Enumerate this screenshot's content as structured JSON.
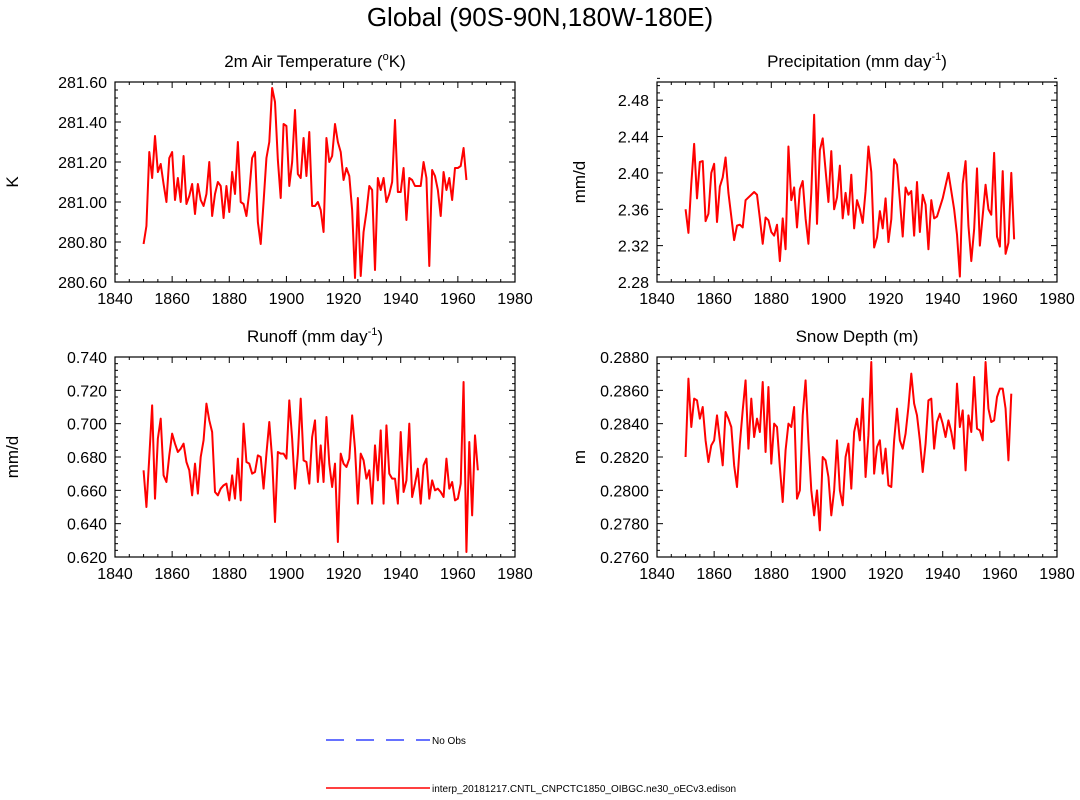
{
  "page_title": "Global (90S-90N,180W-180E)",
  "colors": {
    "series_line": "#ff0000",
    "obs_line": "#3344ff",
    "axis": "#000000"
  },
  "legend": {
    "obs_label": "No Obs",
    "model_label": "interp_20181217.CNTL_CNPCTC1850_OIBGC.ne30_oECv3.edison"
  },
  "chart_data": [
    {
      "type": "line",
      "title": "2m Air Temperature (",
      "title_sup": "o",
      "title_end": "K)",
      "xlabel": "",
      "ylabel": "K",
      "xlim": [
        1840,
        1980
      ],
      "ylim": [
        280.6,
        281.6
      ],
      "x_ticks": [
        "1840",
        "1860",
        "1880",
        "1900",
        "1920",
        "1940",
        "1960",
        "1980"
      ],
      "y_ticks": [
        "280.60",
        "280.80",
        "281.00",
        "281.20",
        "281.40",
        "281.60"
      ],
      "series": [
        {
          "name": "interp_20181217.CNTL_CNPCTC1850_OIBGC.ne30_oECv3.edison",
          "x_start": 1850,
          "values": [
            280.79,
            280.88,
            281.25,
            281.12,
            281.33,
            281.15,
            281.19,
            281.09,
            281.0,
            281.22,
            281.25,
            281.01,
            281.12,
            281.0,
            281.23,
            280.99,
            281.03,
            281.09,
            280.94,
            281.09,
            281.01,
            280.98,
            281.04,
            281.2,
            280.93,
            281.04,
            281.1,
            281.08,
            280.92,
            281.08,
            280.95,
            281.15,
            281.04,
            281.3,
            281.0,
            280.99,
            280.93,
            281.05,
            281.22,
            281.25,
            280.9,
            280.79,
            281.0,
            281.22,
            281.3,
            281.57,
            281.5,
            281.21,
            281.02,
            281.39,
            281.38,
            281.08,
            281.2,
            281.46,
            281.14,
            281.12,
            281.32,
            281.13,
            281.35,
            280.98,
            280.98,
            281.0,
            280.96,
            280.85,
            281.32,
            281.2,
            281.23,
            281.39,
            281.3,
            281.25,
            281.11,
            281.17,
            281.13,
            280.96,
            280.62,
            281.02,
            280.63,
            280.85,
            280.95,
            281.08,
            281.06,
            280.66,
            281.12,
            281.06,
            281.12,
            281.0,
            281.04,
            281.1,
            281.41,
            281.05,
            281.05,
            281.17,
            280.91,
            281.12,
            281.11,
            281.08,
            281.08,
            281.08,
            281.2,
            281.12,
            280.68,
            281.16,
            281.13,
            281.06,
            280.93,
            281.15,
            281.06,
            281.12,
            281.01,
            281.17,
            281.17,
            281.18,
            281.27,
            281.11
          ]
        }
      ]
    },
    {
      "type": "line",
      "title": "Precipitation (mm day",
      "title_sup": "-1",
      "title_end": ")",
      "xlabel": "",
      "ylabel": "mm/d",
      "xlim": [
        1840,
        1980
      ],
      "ylim": [
        2.28,
        2.5
      ],
      "x_ticks": [
        "1840",
        "1860",
        "1880",
        "1900",
        "1920",
        "1940",
        "1960",
        "1980"
      ],
      "y_ticks": [
        "2.28",
        "2.32",
        "2.36",
        "2.40",
        "2.44",
        "2.48"
      ],
      "series": [
        {
          "name": "interp_20181217.CNTL_CNPCTC1850_OIBGC.ne30_oECv3.edison",
          "x_start": 1850,
          "values": [
            2.36,
            2.334,
            2.388,
            2.432,
            2.372,
            2.412,
            2.413,
            2.347,
            2.355,
            2.4,
            2.41,
            2.346,
            2.385,
            2.395,
            2.417,
            2.378,
            2.352,
            2.326,
            2.342,
            2.343,
            2.34,
            2.37,
            2.373,
            2.376,
            2.379,
            2.376,
            2.35,
            2.322,
            2.351,
            2.348,
            2.335,
            2.331,
            2.343,
            2.303,
            2.35,
            2.316,
            2.429,
            2.37,
            2.384,
            2.34,
            2.382,
            2.391,
            2.35,
            2.322,
            2.378,
            2.464,
            2.344,
            2.425,
            2.438,
            2.403,
            2.368,
            2.424,
            2.36,
            2.373,
            2.408,
            2.35,
            2.378,
            2.354,
            2.398,
            2.339,
            2.37,
            2.36,
            2.345,
            2.38,
            2.429,
            2.401,
            2.318,
            2.329,
            2.358,
            2.339,
            2.372,
            2.324,
            2.349,
            2.415,
            2.409,
            2.37,
            2.33,
            2.384,
            2.376,
            2.38,
            2.331,
            2.39,
            2.335,
            2.376,
            2.365,
            2.316,
            2.37,
            2.35,
            2.352,
            2.362,
            2.372,
            2.386,
            2.4,
            2.38,
            2.36,
            2.332,
            2.286,
            2.388,
            2.413,
            2.342,
            2.303,
            2.338,
            2.405,
            2.32,
            2.353,
            2.387,
            2.36,
            2.354,
            2.422,
            2.33,
            2.319,
            2.402,
            2.311,
            2.323,
            2.4,
            2.327
          ]
        }
      ]
    },
    {
      "type": "line",
      "title": "Runoff (mm day",
      "title_sup": "-1",
      "title_end": ")",
      "xlabel": "",
      "ylabel": "mm/d",
      "xlim": [
        1840,
        1980
      ],
      "ylim": [
        0.62,
        0.74
      ],
      "x_ticks": [
        "1840",
        "1860",
        "1880",
        "1900",
        "1920",
        "1940",
        "1960",
        "1980"
      ],
      "y_ticks": [
        "0.620",
        "0.640",
        "0.660",
        "0.680",
        "0.700",
        "0.720",
        "0.740"
      ],
      "series": [
        {
          "name": "interp_20181217.CNTL_CNPCTC1850_OIBGC.ne30_oECv3.edison",
          "x_start": 1850,
          "values": [
            0.672,
            0.65,
            0.68,
            0.711,
            0.655,
            0.691,
            0.703,
            0.669,
            0.665,
            0.681,
            0.694,
            0.688,
            0.683,
            0.685,
            0.688,
            0.677,
            0.672,
            0.657,
            0.676,
            0.658,
            0.68,
            0.69,
            0.712,
            0.702,
            0.695,
            0.659,
            0.657,
            0.661,
            0.663,
            0.664,
            0.654,
            0.669,
            0.655,
            0.679,
            0.654,
            0.7,
            0.677,
            0.676,
            0.67,
            0.671,
            0.681,
            0.68,
            0.661,
            0.682,
            0.701,
            0.679,
            0.641,
            0.683,
            0.682,
            0.682,
            0.679,
            0.714,
            0.691,
            0.661,
            0.682,
            0.715,
            0.678,
            0.677,
            0.664,
            0.692,
            0.702,
            0.665,
            0.687,
            0.665,
            0.704,
            0.676,
            0.662,
            0.676,
            0.629,
            0.682,
            0.676,
            0.674,
            0.679,
            0.705,
            0.685,
            0.652,
            0.682,
            0.678,
            0.667,
            0.672,
            0.652,
            0.687,
            0.666,
            0.696,
            0.652,
            0.699,
            0.67,
            0.667,
            0.667,
            0.652,
            0.695,
            0.659,
            0.666,
            0.7,
            0.656,
            0.664,
            0.673,
            0.652,
            0.675,
            0.679,
            0.655,
            0.666,
            0.66,
            0.661,
            0.659,
            0.656,
            0.679,
            0.661,
            0.665,
            0.654,
            0.655,
            0.664,
            0.725,
            0.623,
            0.689,
            0.645,
            0.693,
            0.672
          ]
        }
      ]
    },
    {
      "type": "line",
      "title": "Snow Depth (m)",
      "title_sup": "",
      "title_end": "",
      "xlabel": "",
      "ylabel": "m",
      "xlim": [
        1840,
        1980
      ],
      "ylim": [
        0.276,
        0.288
      ],
      "x_ticks": [
        "1840",
        "1860",
        "1880",
        "1900",
        "1920",
        "1940",
        "1960",
        "1980"
      ],
      "y_ticks": [
        "0.2760",
        "0.2780",
        "0.2800",
        "0.2820",
        "0.2840",
        "0.2860",
        "0.2880"
      ],
      "series": [
        {
          "name": "interp_20181217.CNTL_CNPCTC1850_OIBGC.ne30_oECv3.edison",
          "x_start": 1850,
          "values": [
            0.282,
            0.2867,
            0.2838,
            0.2855,
            0.2854,
            0.2843,
            0.285,
            0.283,
            0.2817,
            0.2827,
            0.283,
            0.2845,
            0.283,
            0.2815,
            0.2847,
            0.2843,
            0.2838,
            0.2815,
            0.2802,
            0.2828,
            0.2848,
            0.2866,
            0.2825,
            0.2855,
            0.2832,
            0.2843,
            0.2835,
            0.2865,
            0.2823,
            0.2862,
            0.2816,
            0.284,
            0.2838,
            0.2814,
            0.2793,
            0.2824,
            0.284,
            0.2838,
            0.285,
            0.2795,
            0.28,
            0.2845,
            0.2866,
            0.283,
            0.28,
            0.2785,
            0.28,
            0.2776,
            0.282,
            0.2818,
            0.2808,
            0.2785,
            0.28,
            0.283,
            0.28,
            0.2791,
            0.282,
            0.2828,
            0.2801,
            0.2835,
            0.2843,
            0.283,
            0.2855,
            0.2808,
            0.2833,
            0.2877,
            0.281,
            0.2826,
            0.283,
            0.281,
            0.2825,
            0.2803,
            0.2802,
            0.283,
            0.2849,
            0.283,
            0.2825,
            0.2834,
            0.285,
            0.287,
            0.2852,
            0.2845,
            0.283,
            0.2811,
            0.2828,
            0.2854,
            0.2855,
            0.2825,
            0.2841,
            0.2846,
            0.284,
            0.2832,
            0.2842,
            0.2835,
            0.2825,
            0.2864,
            0.2838,
            0.2848,
            0.2812,
            0.2845,
            0.2835,
            0.2868,
            0.2837,
            0.2836,
            0.283,
            0.2877,
            0.2849,
            0.2841,
            0.2842,
            0.2856,
            0.2861,
            0.2861,
            0.2849,
            0.2818,
            0.2858
          ]
        }
      ]
    }
  ]
}
